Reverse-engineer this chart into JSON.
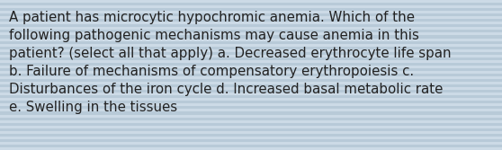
{
  "text": "A patient has microcytic hypochromic anemia. Which of the\nfollowing pathogenic mechanisms may cause anemia in this\npatient? (select all that apply) a. Decreased erythrocyte life span\nb. Failure of mechanisms of compensatory erythropoiesis c.\nDisturbances of the iron cycle d. Increased basal metabolic rate\ne. Swelling in the tissues",
  "bg_color": "#c5d5e2",
  "stripe_color_light": "#ccdae6",
  "stripe_color_dark": "#b8cad8",
  "text_color": "#222222",
  "font_size": 10.8,
  "fig_width": 5.58,
  "fig_height": 1.67,
  "dpi": 100,
  "n_stripes": 55
}
